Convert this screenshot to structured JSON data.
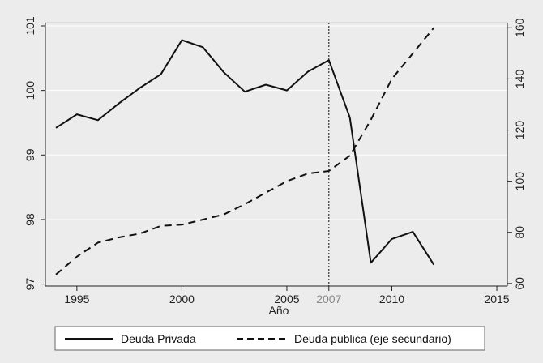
{
  "chart_data": {
    "type": "line",
    "title": "",
    "xlabel": "Año",
    "ylabel": "",
    "y2label": "",
    "x_ticks": [
      1995,
      2000,
      2005,
      2010,
      2015
    ],
    "xlim": [
      1993.5,
      2015.5
    ],
    "ylim": [
      96.97,
      101.05
    ],
    "y2lim": [
      59,
      162
    ],
    "y_ticks": [
      97,
      98,
      99,
      100,
      101
    ],
    "y2_ticks": [
      60,
      80,
      100,
      120,
      140,
      160
    ],
    "vline": {
      "x": 2007,
      "label": "2007",
      "style": "dotted"
    },
    "grid": true,
    "legend_position": "bottom",
    "series": [
      {
        "name": "Deuda Privada",
        "axis": "primary",
        "style": "solid",
        "color": "#111111",
        "x": [
          1994,
          1995,
          1996,
          1997,
          1998,
          1999,
          2000,
          2001,
          2002,
          2003,
          2004,
          2005,
          2006,
          2007,
          2008,
          2009,
          2010,
          2011,
          2012
        ],
        "values": [
          99.42,
          99.63,
          99.54,
          99.8,
          100.04,
          100.25,
          100.78,
          100.67,
          100.28,
          99.98,
          100.09,
          100.0,
          100.29,
          100.47,
          99.58,
          97.33,
          97.7,
          97.81,
          97.3
        ]
      },
      {
        "name": "Deuda pública (eje secundario)",
        "axis": "secondary",
        "style": "dashed",
        "color": "#111111",
        "x": [
          1994,
          1995,
          1996,
          1997,
          1998,
          1999,
          2000,
          2001,
          2002,
          2003,
          2004,
          2005,
          2006,
          2007,
          2008,
          2009,
          2010,
          2011,
          2012
        ],
        "values": [
          63.5,
          70.5,
          76,
          78,
          79.5,
          82.5,
          83,
          85,
          87,
          91,
          95.5,
          100,
          103,
          104,
          110,
          124,
          140,
          150,
          160
        ]
      }
    ]
  }
}
